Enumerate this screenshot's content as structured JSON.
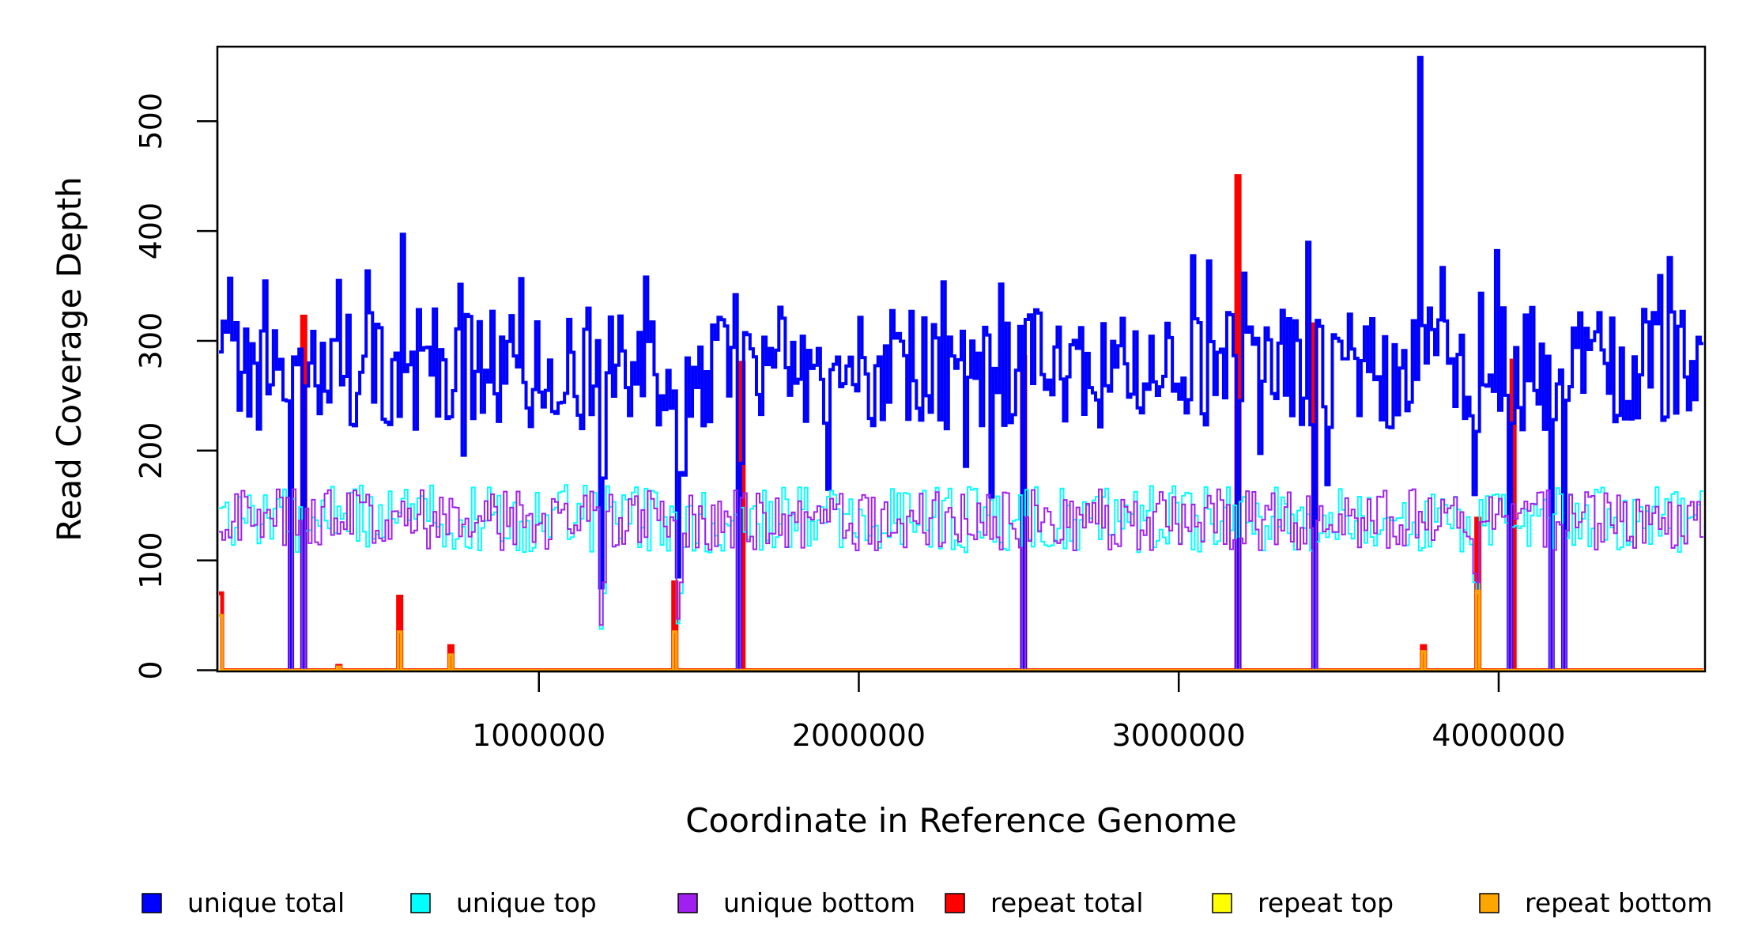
{
  "chart_data": {
    "type": "line",
    "title": "",
    "xlabel": "Coordinate in Reference Genome",
    "ylabel": "Read Coverage Depth",
    "xlim": [
      0,
      4640000
    ],
    "ylim": [
      0,
      565
    ],
    "x_ticks": [
      1000000,
      2000000,
      3000000,
      4000000
    ],
    "x_tick_labels": [
      "1000000",
      "2000000",
      "3000000",
      "4000000"
    ],
    "y_ticks": [
      0,
      100,
      200,
      300,
      400,
      500
    ],
    "y_tick_labels": [
      "0",
      "100",
      "200",
      "300",
      "400",
      "500"
    ],
    "grid": false,
    "legend_position": "bottom",
    "bin_size": 10000,
    "series": [
      {
        "name": "unique total",
        "color": "#0000ff",
        "baseline": 275,
        "spread": 35
      },
      {
        "name": "unique top",
        "color": "#00ffff",
        "baseline": 138,
        "spread": 22
      },
      {
        "name": "unique bottom",
        "color": "#a020f0",
        "baseline": 137,
        "spread": 20
      },
      {
        "name": "repeat total",
        "color": "#ff0000",
        "baseline": 0,
        "spread": 0
      },
      {
        "name": "repeat top",
        "color": "#ffff00",
        "baseline": 0,
        "spread": 0
      },
      {
        "name": "repeat bottom",
        "color": "#ffa500",
        "baseline": 0,
        "spread": 0
      }
    ],
    "coverage_gaps": [
      220000,
      268000,
      1625000,
      2510000,
      3185000,
      3425000,
      4035000,
      4165000,
      4205000
    ],
    "unique_total_spikes": [
      {
        "x": 33000,
        "y": 357
      },
      {
        "x": 375000,
        "y": 355
      },
      {
        "x": 575000,
        "y": 397
      },
      {
        "x": 1330000,
        "y": 358
      },
      {
        "x": 1610000,
        "y": 342
      },
      {
        "x": 3755000,
        "y": 558
      }
    ],
    "unique_dips": [
      {
        "x": 1195000,
        "y": 75
      },
      {
        "x": 1430000,
        "y": 85
      },
      {
        "x": 3920000,
        "y": 160
      }
    ],
    "repeat_total_peaks": [
      {
        "x": 8000,
        "y": 70
      },
      {
        "x": 268000,
        "y": 322
      },
      {
        "x": 370000,
        "y": 4
      },
      {
        "x": 565000,
        "y": 67
      },
      {
        "x": 725000,
        "y": 22
      },
      {
        "x": 1425000,
        "y": 80
      },
      {
        "x": 1630000,
        "y": 280
      },
      {
        "x": 2510000,
        "y": 285
      },
      {
        "x": 3185000,
        "y": 450
      },
      {
        "x": 3425000,
        "y": 315
      },
      {
        "x": 3760000,
        "y": 22
      },
      {
        "x": 3935000,
        "y": 138
      },
      {
        "x": 4040000,
        "y": 282
      }
    ],
    "repeat_bottom_peaks": [
      {
        "x": 8000,
        "y": 50
      },
      {
        "x": 370000,
        "y": 3
      },
      {
        "x": 565000,
        "y": 35
      },
      {
        "x": 725000,
        "y": 14
      },
      {
        "x": 1425000,
        "y": 35
      },
      {
        "x": 3760000,
        "y": 17
      },
      {
        "x": 3935000,
        "y": 72
      }
    ]
  }
}
